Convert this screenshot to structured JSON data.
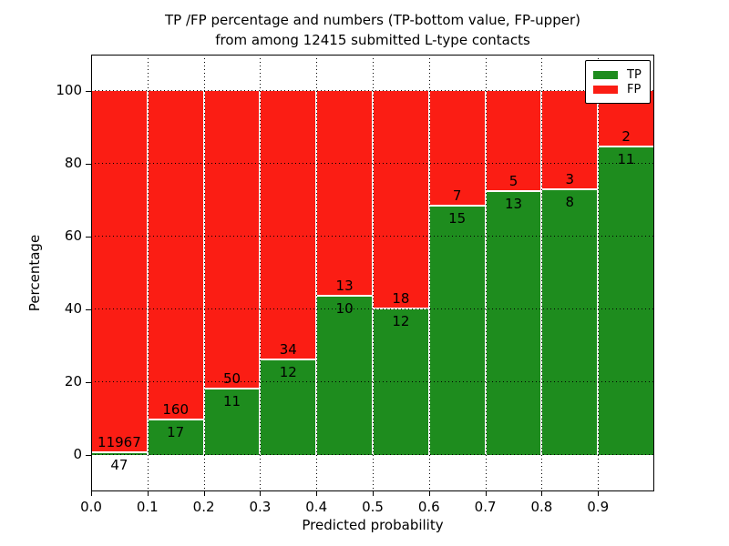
{
  "title": {
    "line1": "TP /FP percentage and numbers (TP-bottom value, FP-upper)",
    "line2": "from among 12415 submitted L-type contacts"
  },
  "chart_data": {
    "type": "bar",
    "stacked": true,
    "normalized_to_percent": true,
    "total_contacts": 12415,
    "categories": [
      "0.0",
      "0.1",
      "0.2",
      "0.3",
      "0.4",
      "0.5",
      "0.6",
      "0.7",
      "0.8",
      "0.9"
    ],
    "bin_width": 0.1,
    "series": [
      {
        "name": "TP",
        "color": "#1e8c1e",
        "values": [
          47,
          17,
          11,
          12,
          10,
          12,
          15,
          13,
          8,
          11
        ]
      },
      {
        "name": "FP",
        "color": "#fb1d14",
        "values": [
          11967,
          160,
          50,
          34,
          13,
          18,
          7,
          5,
          3,
          2
        ]
      }
    ],
    "xlabel": "Predicted probability",
    "ylabel": "Percentage",
    "xticks": [
      "0.0",
      "0.1",
      "0.2",
      "0.3",
      "0.4",
      "0.5",
      "0.6",
      "0.7",
      "0.8",
      "0.9"
    ],
    "yticks": [
      0,
      20,
      40,
      60,
      80,
      100
    ],
    "xlim": [
      0.0,
      1.0
    ],
    "ylim": [
      -10,
      110
    ],
    "grid": "dotted",
    "grid_color": "#000000",
    "bar_edge_color": "#ffffff",
    "legend": {
      "position": "upper right",
      "entries": [
        {
          "label": "TP",
          "color": "#1e8c1e"
        },
        {
          "label": "FP",
          "color": "#fb1d14"
        }
      ]
    }
  }
}
